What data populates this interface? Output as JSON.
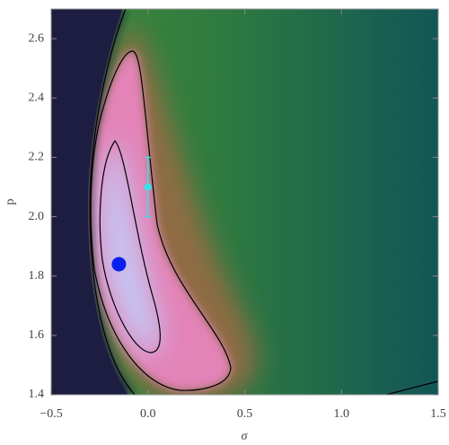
{
  "chart_data": {
    "type": "scatter",
    "x_label": "σ",
    "y_label": "p",
    "xlim": [
      -0.5,
      1.5
    ],
    "ylim": [
      1.4,
      2.7
    ],
    "xticks": [
      {
        "value": -0.5,
        "label": "−0.5"
      },
      {
        "value": 0,
        "label": "0.0"
      },
      0.5,
      {
        "value": 1,
        "label": "1.0"
      },
      1.5
    ],
    "yticks": [
      1.4,
      1.6,
      1.8,
      {
        "value": 2,
        "label": "2.0"
      },
      2.2,
      2.4,
      2.6
    ],
    "series": [
      {
        "color": "#0a1ef0",
        "x": [
          -0.15
        ],
        "values": [
          1.84
        ]
      },
      {
        "color": "#2ee6ea",
        "x": [
          0
        ],
        "values": [
          2.1
        ],
        "errors": [
          0.1
        ]
      }
    ]
  }
}
